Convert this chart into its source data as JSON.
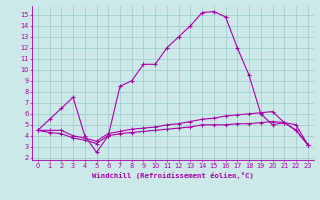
{
  "xlabel": "Windchill (Refroidissement éolien,°C)",
  "background_color": "#cce8e8",
  "line_color_main": "#aa00aa",
  "line_color_low1": "#880088",
  "line_color_low2": "#aa00aa",
  "grid_color": "#99cccc",
  "xlim": [
    -0.5,
    23.5
  ],
  "ylim": [
    1.8,
    15.8
  ],
  "yticks": [
    2,
    3,
    4,
    5,
    6,
    7,
    8,
    9,
    10,
    11,
    12,
    13,
    14,
    15
  ],
  "xticks": [
    0,
    1,
    2,
    3,
    4,
    5,
    6,
    7,
    8,
    9,
    10,
    11,
    12,
    13,
    14,
    15,
    16,
    17,
    18,
    19,
    20,
    21,
    22,
    23
  ],
  "line1_x": [
    0,
    1,
    2,
    3,
    4,
    5,
    6,
    7,
    8,
    9,
    10,
    11,
    12,
    13,
    14,
    15,
    16,
    17,
    18,
    19,
    20,
    21,
    22,
    23
  ],
  "line1_y": [
    4.5,
    5.5,
    6.5,
    7.5,
    4.0,
    2.5,
    4.0,
    8.5,
    9.0,
    10.5,
    10.5,
    12.0,
    13.0,
    14.0,
    15.2,
    15.3,
    14.8,
    12.0,
    9.5,
    6.0,
    5.0,
    5.2,
    4.5,
    3.2
  ],
  "line2_x": [
    0,
    1,
    2,
    3,
    4,
    5,
    6,
    7,
    8,
    9,
    10,
    11,
    12,
    13,
    14,
    15,
    16,
    17,
    18,
    19,
    20,
    21,
    22,
    23
  ],
  "line2_y": [
    4.5,
    4.5,
    4.5,
    4.0,
    3.8,
    3.5,
    4.2,
    4.4,
    4.6,
    4.7,
    4.8,
    5.0,
    5.1,
    5.3,
    5.5,
    5.6,
    5.8,
    5.9,
    6.0,
    6.1,
    6.2,
    5.2,
    5.0,
    3.2
  ],
  "line3_x": [
    0,
    1,
    2,
    3,
    4,
    5,
    6,
    7,
    8,
    9,
    10,
    11,
    12,
    13,
    14,
    15,
    16,
    17,
    18,
    19,
    20,
    21,
    22,
    23
  ],
  "line3_y": [
    4.5,
    4.3,
    4.2,
    3.8,
    3.6,
    3.3,
    4.0,
    4.2,
    4.3,
    4.4,
    4.5,
    4.6,
    4.7,
    4.8,
    5.0,
    5.0,
    5.0,
    5.1,
    5.1,
    5.2,
    5.3,
    5.2,
    4.5,
    3.2
  ]
}
